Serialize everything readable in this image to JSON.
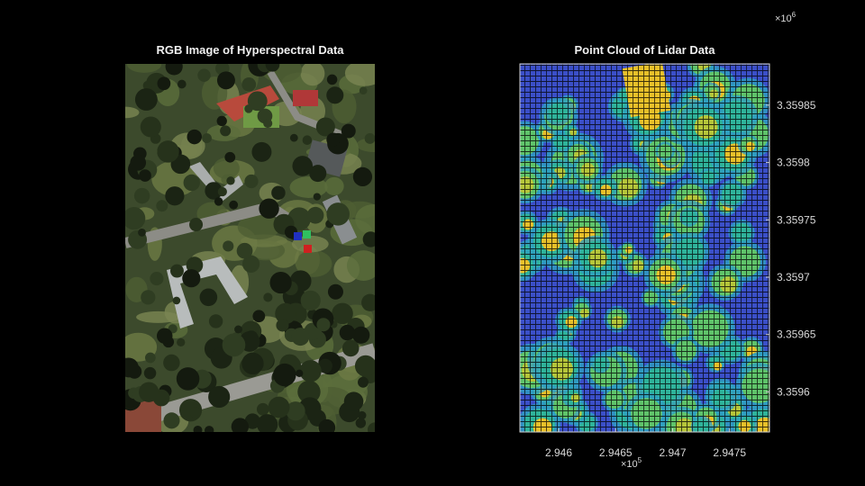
{
  "chart_data": [
    {
      "type": "image",
      "title": "RGB Image of Hyperspectral Data"
    },
    {
      "type": "scatter",
      "title": "Point Cloud of Lidar Data",
      "xlim": [
        2.94566,
        2.94785
      ],
      "xticks": [
        2.946,
        2.9465,
        2.947,
        2.9475
      ],
      "x_multiplier": {
        "base": "×10",
        "exponent": "5"
      },
      "ylim": [
        3.359565,
        3.359886
      ],
      "yticks": [
        3.3596,
        3.35965,
        3.3597,
        3.35975,
        3.3598,
        3.35985
      ],
      "y_multiplier": {
        "base": "×10",
        "exponent": "6"
      },
      "y_axis_side": "right"
    }
  ]
}
